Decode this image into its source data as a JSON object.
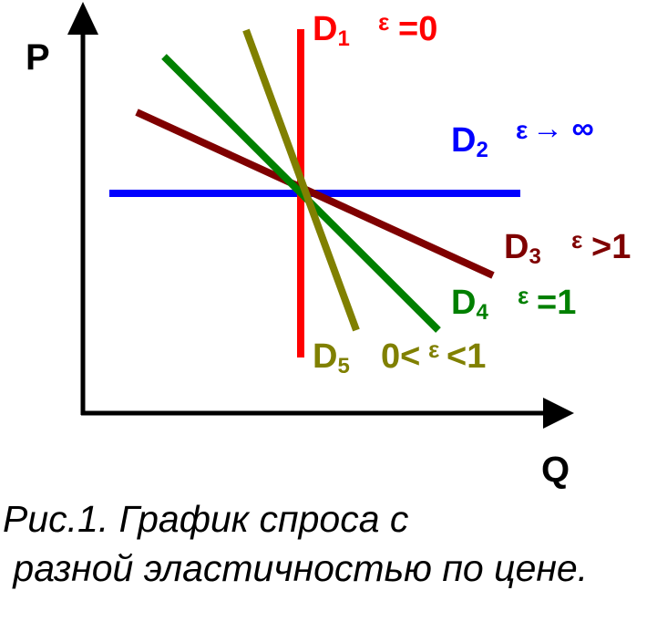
{
  "axes": {
    "y_label": "P",
    "x_label": "Q"
  },
  "curves": [
    {
      "id": "d1",
      "name": "D",
      "sub": "1",
      "elasticity": "ε=0",
      "eps": "ε",
      "rest": "=0",
      "color": "#ff0000"
    },
    {
      "id": "d2",
      "name": "D",
      "sub": "2",
      "elasticity": "ε → ∞",
      "eps": "ε",
      "rest": " →  ∞",
      "color": "#0000ff"
    },
    {
      "id": "d3",
      "name": "D",
      "sub": "3",
      "elasticity": "ε>1",
      "eps": "ε",
      "rest": ">1",
      "color": "#7f0000"
    },
    {
      "id": "d4",
      "name": "D",
      "sub": "4",
      "elasticity": "ε=1",
      "eps": "ε",
      "rest": "=1",
      "color": "#008000"
    },
    {
      "id": "d5",
      "name": "D",
      "sub": "5",
      "elasticity": "0<ε<1",
      "pre": "0<",
      "eps": "ε",
      "rest": "<1",
      "color": "#808000"
    }
  ],
  "caption": {
    "line1": "Рис.1. График спроса с",
    "line2": " разной эластичностью по цене."
  }
}
